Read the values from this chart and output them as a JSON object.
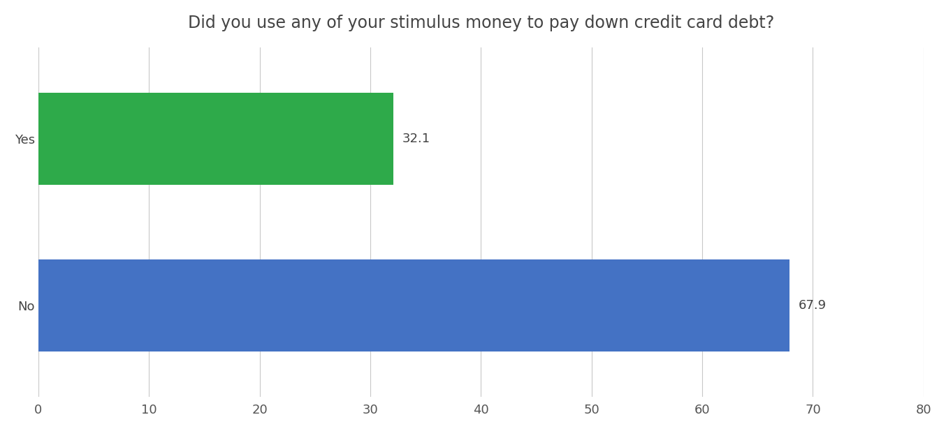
{
  "title": "Did you use any of your stimulus money to pay down credit card debt?",
  "categories": [
    "Yes",
    "No"
  ],
  "values": [
    32.1,
    67.9
  ],
  "bar_colors": [
    "#2EAA4A",
    "#4472C4"
  ],
  "bar_positions": [
    1.0,
    0.0
  ],
  "xlim": [
    0,
    80
  ],
  "ylim": [
    -0.55,
    1.55
  ],
  "xticks": [
    0,
    10,
    20,
    30,
    40,
    50,
    60,
    70,
    80
  ],
  "title_fontsize": 17,
  "label_fontsize": 13,
  "tick_fontsize": 13,
  "value_fontsize": 13,
  "background_color": "#ffffff",
  "grid_color": "#c8c8c8",
  "bar_height": 0.55
}
